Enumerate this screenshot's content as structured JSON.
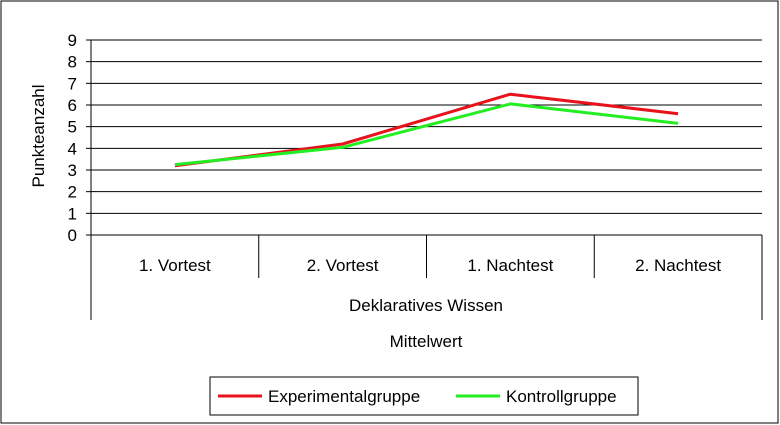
{
  "chart_data": {
    "type": "line",
    "categories": [
      "1. Vortest",
      "2. Vortest",
      "1. Nachtest",
      "2. Nachtest"
    ],
    "group_label": "Deklaratives Wissen",
    "measure_label": "Mittelwert",
    "ylabel": "Punkteanzahl",
    "ylim": [
      0,
      9
    ],
    "yticks": [
      0,
      1,
      2,
      3,
      4,
      5,
      6,
      7,
      8,
      9
    ],
    "grid": true,
    "legend_position": "bottom",
    "series": [
      {
        "name": "Experimentalgruppe",
        "color": "#e8121d",
        "values": [
          3.2,
          4.2,
          6.5,
          5.6
        ]
      },
      {
        "name": "Kontrollgruppe",
        "color": "#22ee22",
        "values": [
          3.25,
          4.05,
          6.05,
          5.15
        ]
      }
    ]
  }
}
